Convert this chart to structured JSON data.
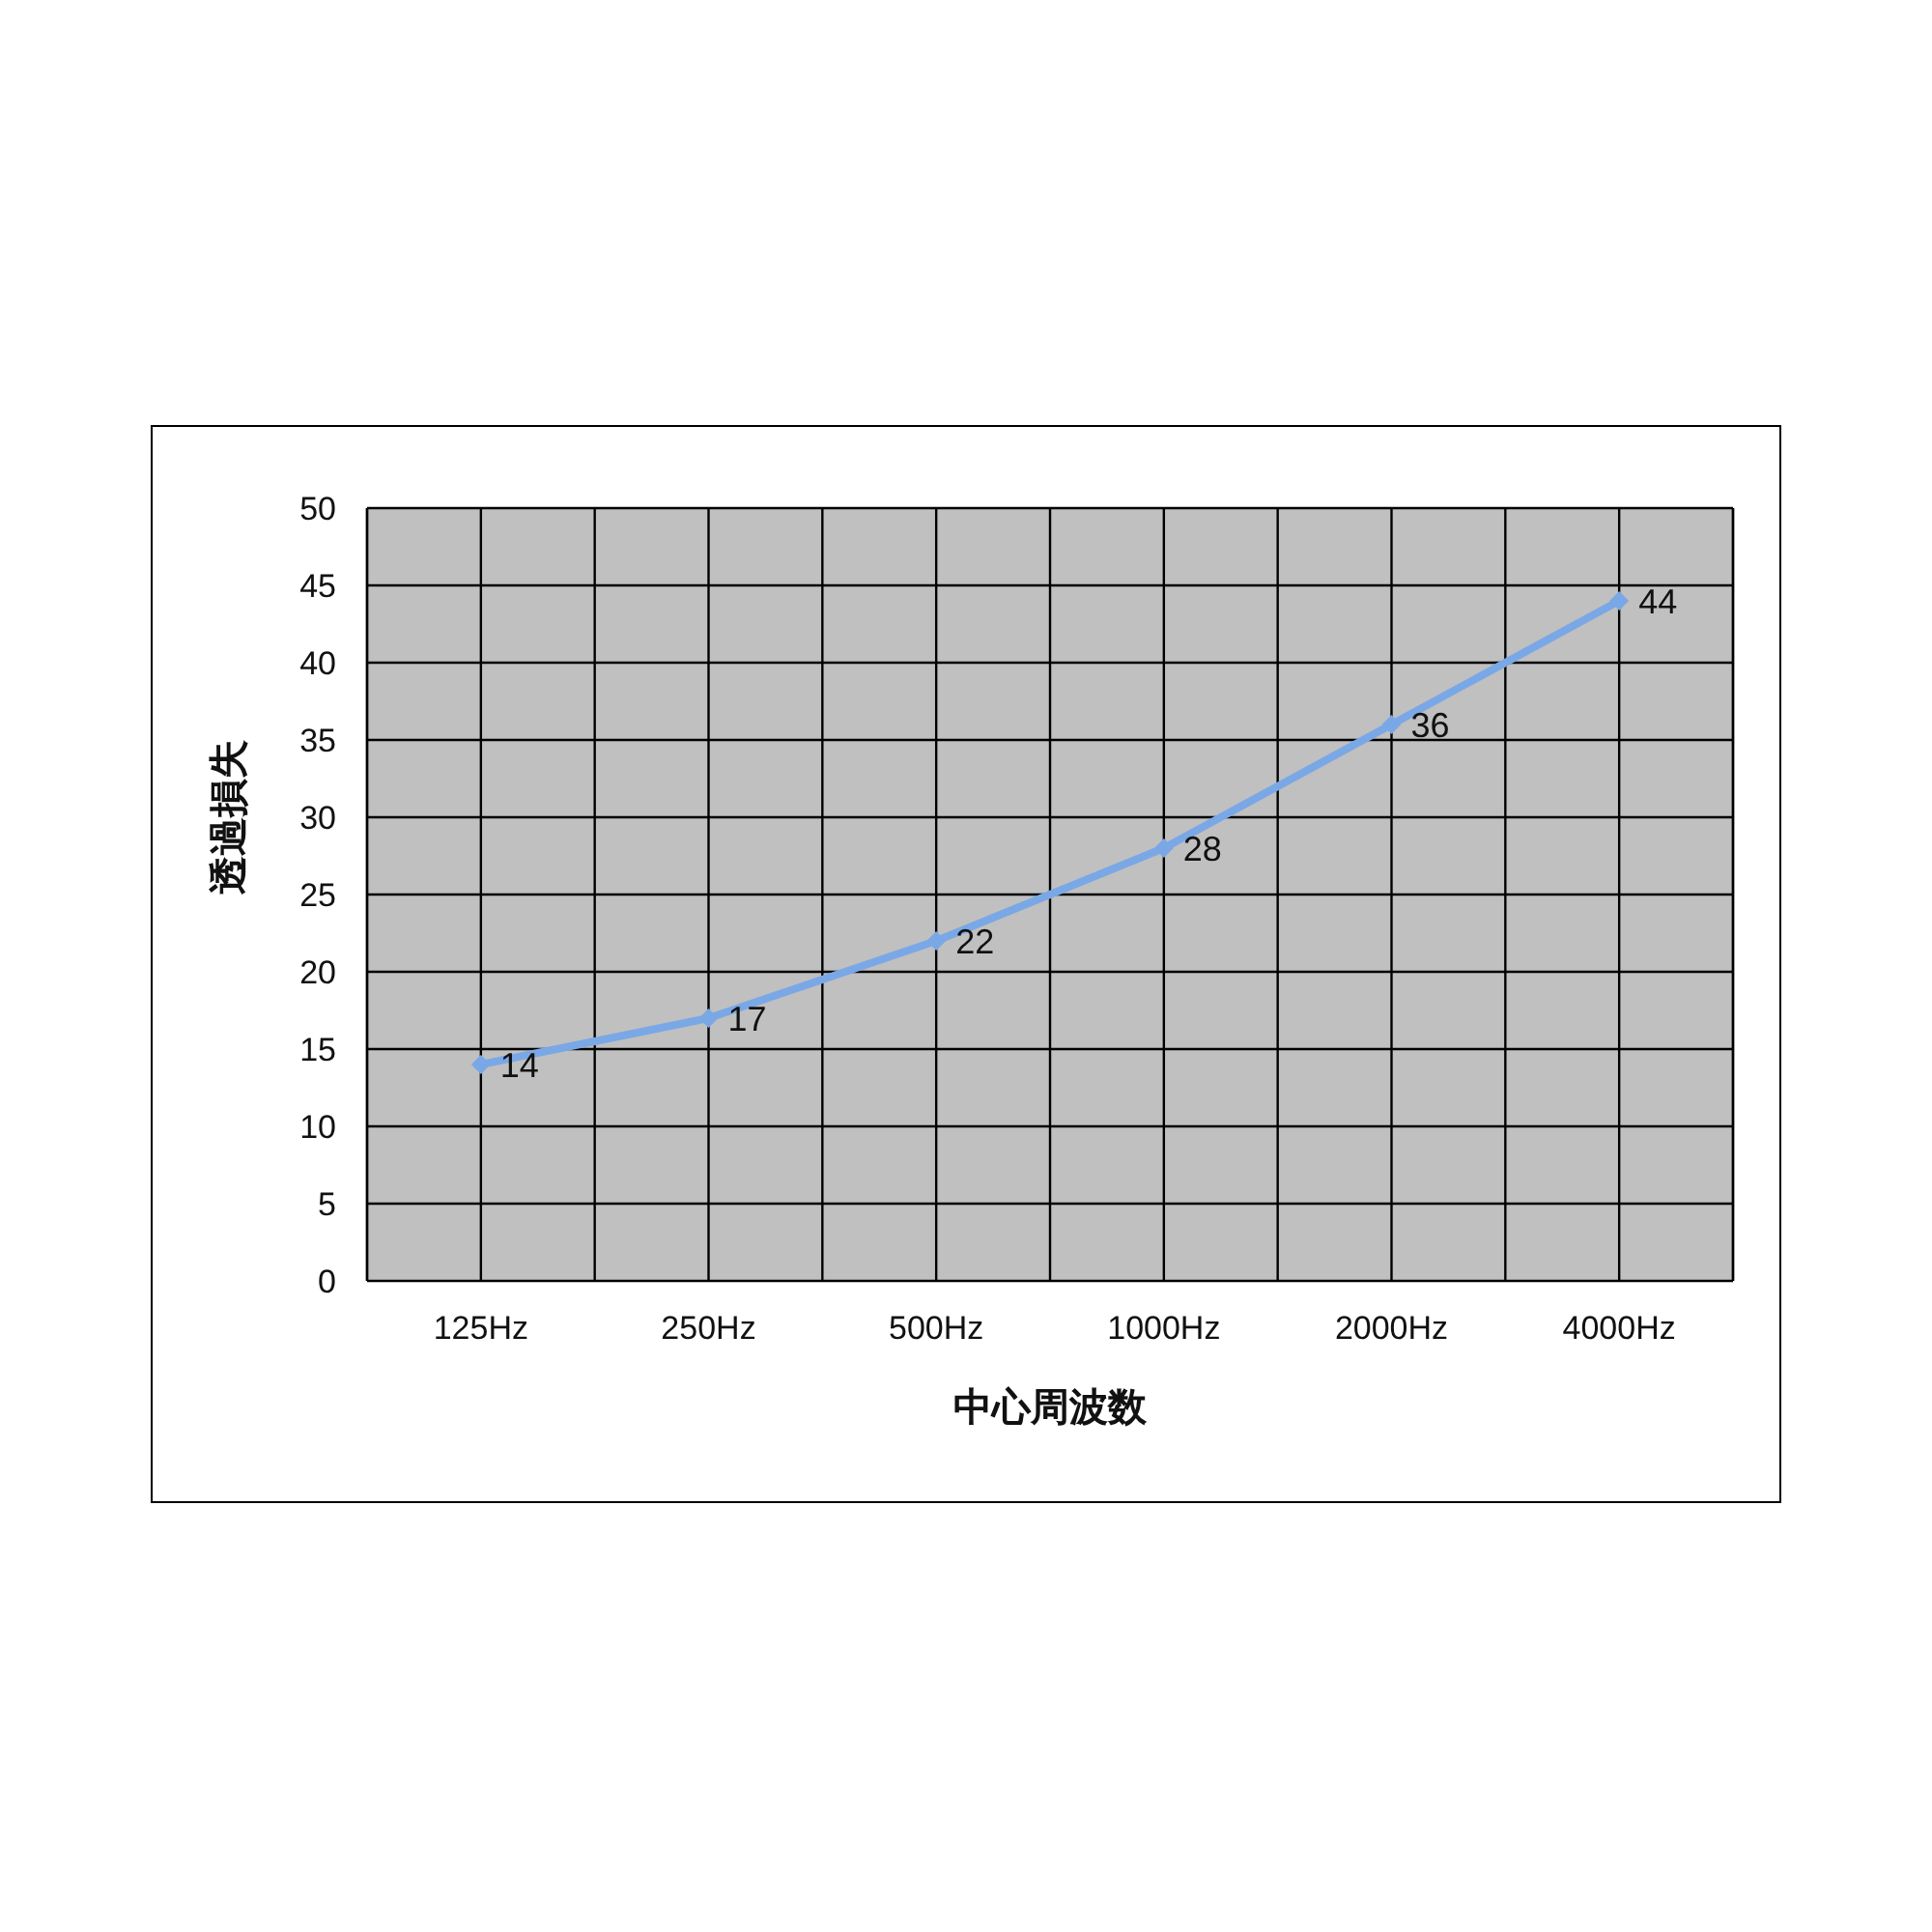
{
  "chart_data": {
    "type": "line",
    "xlabel": "中心周波数",
    "ylabel": "透過損失",
    "categories": [
      "125Hz",
      "250Hz",
      "500Hz",
      "1000Hz",
      "2000Hz",
      "4000Hz"
    ],
    "series": [
      {
        "color": "#7aa8e6",
        "values": [
          14,
          17,
          22,
          28,
          36,
          44
        ]
      }
    ],
    "ylim": [
      0,
      50
    ],
    "yticks": [
      0,
      5,
      10,
      15,
      20,
      25,
      30,
      35,
      40,
      45,
      50
    ],
    "grid": true,
    "marker": "diamond",
    "data_labels": true
  }
}
